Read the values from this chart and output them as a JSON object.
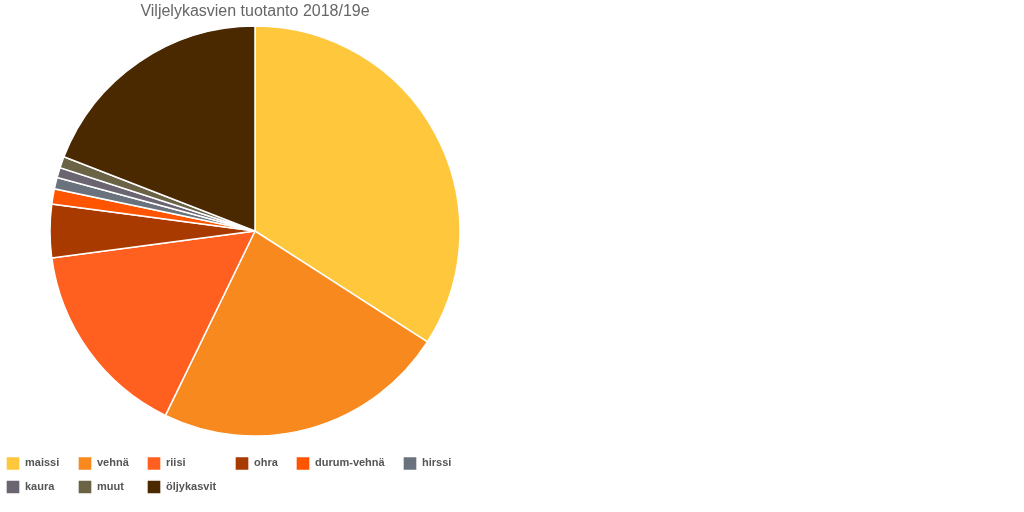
{
  "chart_data": {
    "type": "pie",
    "title": "Viljelykasvien tuotanto 2018/19e",
    "categories": [
      "maissi",
      "vehnä",
      "riisi",
      "ohra",
      "durum-vehnä",
      "hirssi",
      "kaura",
      "muut",
      "öljykasvit"
    ],
    "values": [
      34.1,
      23.1,
      15.7,
      4.2,
      1.2,
      0.9,
      0.8,
      0.9,
      19.1
    ],
    "colors": [
      "#ffc83c",
      "#f7891e",
      "#ff6020",
      "#a83a00",
      "#ff5500",
      "#6a737d",
      "#6a6570",
      "#6b6346",
      "#4a2800"
    ],
    "legend": "bottom"
  }
}
